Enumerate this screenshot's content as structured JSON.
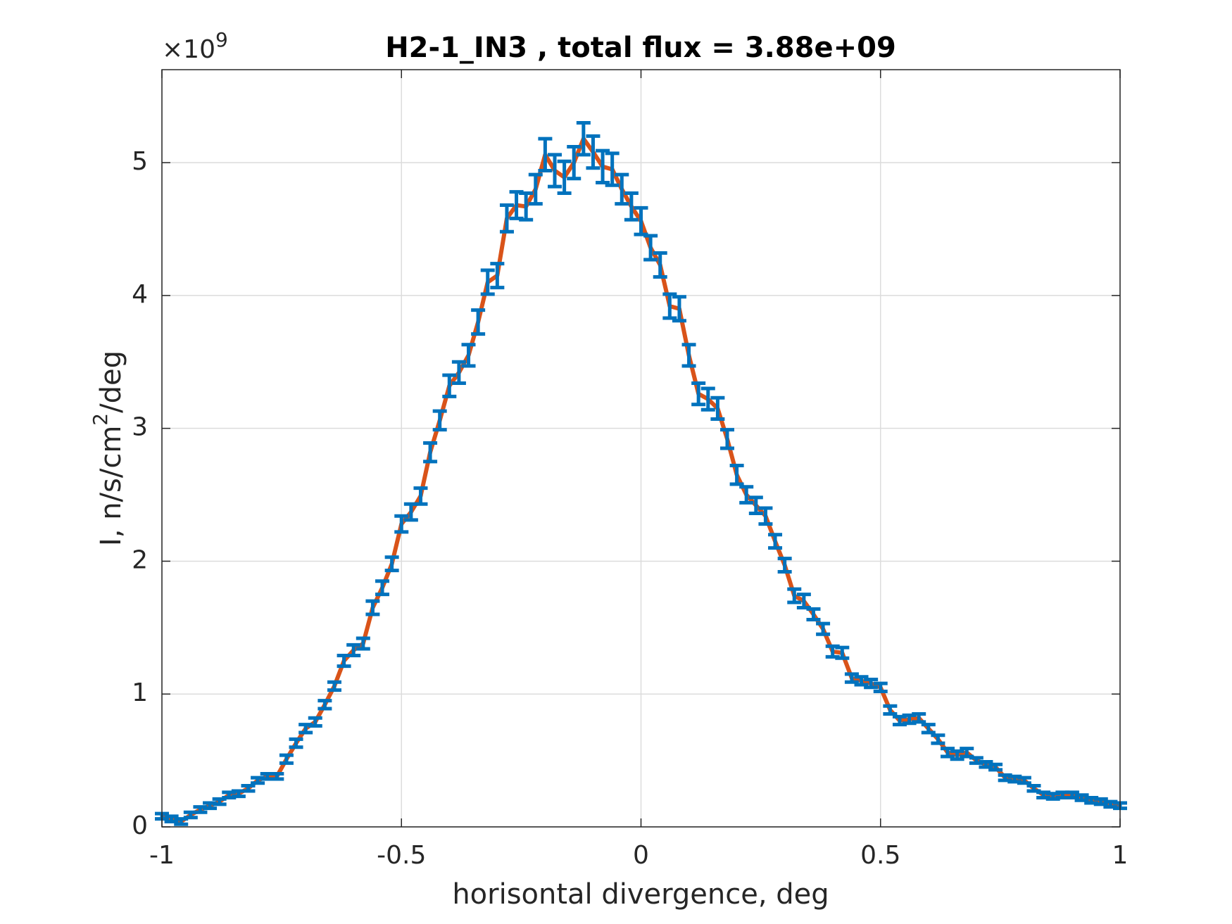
{
  "chart_data": {
    "type": "errorbar-line",
    "title": "H2-1_IN3 , total flux =  3.88e+09",
    "xlabel": "horisontal divergence, deg",
    "ylabel": [
      "I, n/s/cm",
      "2",
      "/deg"
    ],
    "y_multiplier": [
      "×10",
      "9"
    ],
    "xlim": [
      -1,
      1
    ],
    "xticks": [
      -1,
      -0.5,
      0,
      0.5,
      1
    ],
    "ylim": [
      0,
      5.7
    ],
    "yticks": [
      0,
      1,
      2,
      3,
      4,
      5
    ],
    "grid": true,
    "color": "#0072bd",
    "line_color": "#d95319",
    "x": [
      -1.0,
      -0.98,
      -0.96,
      -0.94,
      -0.92,
      -0.9,
      -0.88,
      -0.86,
      -0.84,
      -0.82,
      -0.8,
      -0.78,
      -0.76,
      -0.74,
      -0.72,
      -0.7,
      -0.68,
      -0.66,
      -0.64,
      -0.62,
      -0.6,
      -0.58,
      -0.56,
      -0.54,
      -0.52,
      -0.5,
      -0.48,
      -0.46,
      -0.44,
      -0.42,
      -0.4,
      -0.38,
      -0.36,
      -0.34,
      -0.32,
      -0.3,
      -0.28,
      -0.26,
      -0.24,
      -0.22,
      -0.2,
      -0.18,
      -0.16,
      -0.14,
      -0.12,
      -0.1,
      -0.08,
      -0.06,
      -0.04,
      -0.02,
      0.0,
      0.02,
      0.04,
      0.06,
      0.08,
      0.1,
      0.12,
      0.14,
      0.16,
      0.18,
      0.2,
      0.22,
      0.24,
      0.26,
      0.28,
      0.3,
      0.32,
      0.34,
      0.36,
      0.38,
      0.4,
      0.42,
      0.44,
      0.46,
      0.48,
      0.5,
      0.52,
      0.54,
      0.56,
      0.58,
      0.6,
      0.62,
      0.64,
      0.66,
      0.68,
      0.7,
      0.72,
      0.74,
      0.76,
      0.78,
      0.8,
      0.82,
      0.84,
      0.86,
      0.88,
      0.9,
      0.92,
      0.94,
      0.96,
      0.98,
      1.0
    ],
    "values": [
      0.08,
      0.06,
      0.04,
      0.09,
      0.13,
      0.16,
      0.19,
      0.24,
      0.25,
      0.29,
      0.35,
      0.38,
      0.38,
      0.51,
      0.63,
      0.74,
      0.79,
      0.92,
      1.06,
      1.25,
      1.33,
      1.38,
      1.65,
      1.8,
      1.98,
      2.28,
      2.37,
      2.49,
      2.82,
      3.06,
      3.32,
      3.42,
      3.55,
      3.8,
      4.1,
      4.15,
      4.58,
      4.68,
      4.67,
      4.8,
      5.06,
      4.94,
      4.89,
      5.0,
      5.18,
      5.08,
      4.97,
      4.95,
      4.8,
      4.67,
      4.56,
      4.36,
      4.23,
      3.92,
      3.9,
      3.55,
      3.26,
      3.22,
      3.15,
      2.92,
      2.65,
      2.5,
      2.42,
      2.34,
      2.15,
      1.97,
      1.74,
      1.7,
      1.6,
      1.49,
      1.32,
      1.31,
      1.12,
      1.1,
      1.08,
      1.05,
      0.88,
      0.8,
      0.81,
      0.82,
      0.74,
      0.66,
      0.56,
      0.54,
      0.56,
      0.5,
      0.47,
      0.45,
      0.37,
      0.36,
      0.35,
      0.29,
      0.24,
      0.23,
      0.24,
      0.24,
      0.22,
      0.2,
      0.19,
      0.17,
      0.16
    ],
    "errors": [
      0.02,
      0.02,
      0.02,
      0.02,
      0.02,
      0.02,
      0.02,
      0.02,
      0.02,
      0.02,
      0.02,
      0.02,
      0.02,
      0.03,
      0.03,
      0.03,
      0.03,
      0.03,
      0.03,
      0.04,
      0.04,
      0.04,
      0.05,
      0.05,
      0.05,
      0.06,
      0.06,
      0.06,
      0.07,
      0.07,
      0.08,
      0.08,
      0.08,
      0.09,
      0.09,
      0.09,
      0.1,
      0.1,
      0.1,
      0.11,
      0.12,
      0.12,
      0.12,
      0.12,
      0.12,
      0.12,
      0.12,
      0.12,
      0.11,
      0.1,
      0.1,
      0.09,
      0.09,
      0.09,
      0.09,
      0.08,
      0.08,
      0.08,
      0.08,
      0.07,
      0.07,
      0.06,
      0.06,
      0.06,
      0.05,
      0.05,
      0.05,
      0.05,
      0.04,
      0.04,
      0.04,
      0.04,
      0.03,
      0.03,
      0.03,
      0.03,
      0.03,
      0.03,
      0.03,
      0.03,
      0.03,
      0.03,
      0.03,
      0.03,
      0.03,
      0.02,
      0.02,
      0.02,
      0.02,
      0.02,
      0.02,
      0.02,
      0.02,
      0.02,
      0.02,
      0.02,
      0.02,
      0.02,
      0.02,
      0.02,
      0.02
    ]
  }
}
